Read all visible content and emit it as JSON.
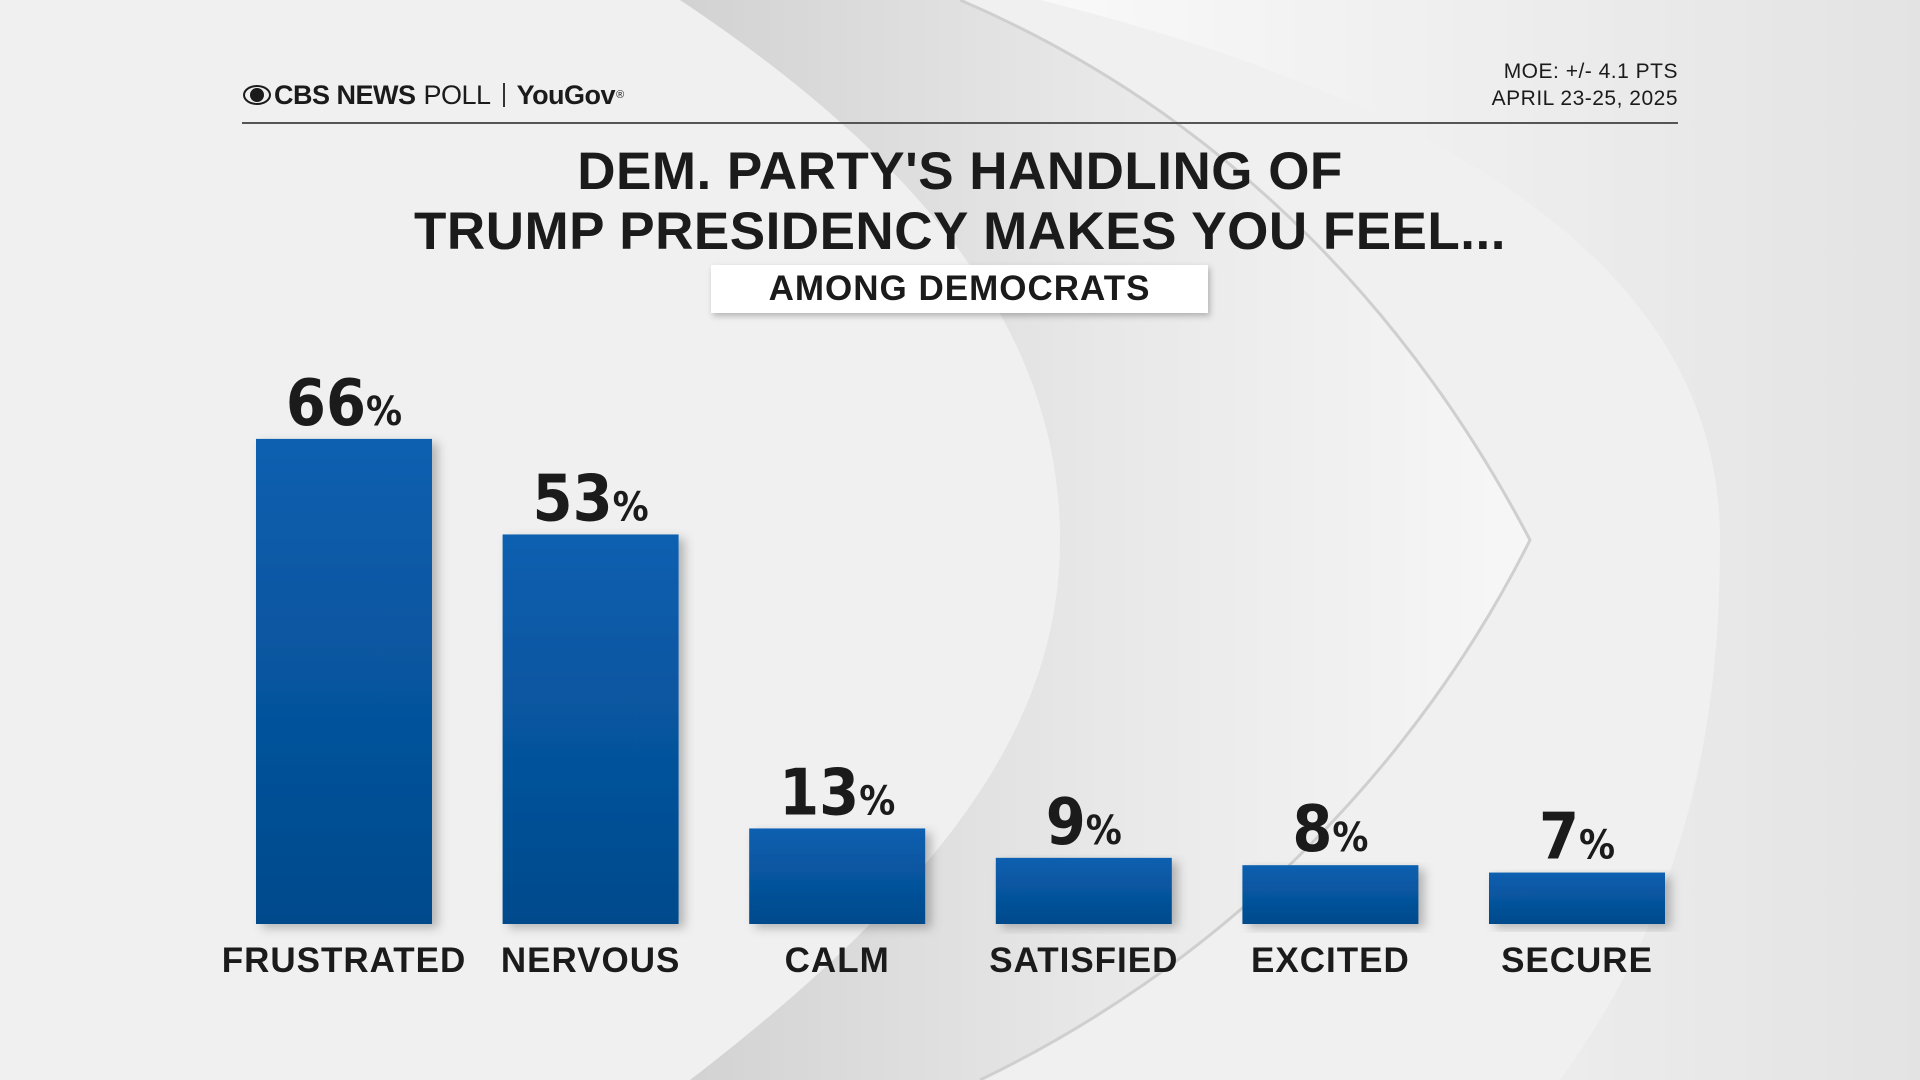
{
  "brand": {
    "cbs": "CBS NEWS",
    "poll": "POLL",
    "partner": "YouGov",
    "partner_mark": "®"
  },
  "meta": {
    "moe": "MOE: +/- 4.1 PTS",
    "dates": "APRIL 23-25, 2025"
  },
  "colors": {
    "bar": "#0a5aa8",
    "bar_dark": "#034a8c",
    "text": "#1b1b1b"
  },
  "chart_data": {
    "type": "bar",
    "title": "DEM. PARTY'S HANDLING OF TRUMP PRESIDENCY MAKES YOU FEEL...",
    "title_lines": [
      "DEM. PARTY'S HANDLING OF",
      "TRUMP PRESIDENCY MAKES YOU FEEL..."
    ],
    "subtitle": "AMONG DEMOCRATS",
    "categories": [
      "FRUSTRATED",
      "NERVOUS",
      "CALM",
      "SATISFIED",
      "EXCITED",
      "SECURE"
    ],
    "values": [
      66,
      53,
      13,
      9,
      8,
      7
    ],
    "value_suffix": "%",
    "xlabel": "",
    "ylabel": "",
    "ylim": [
      0,
      100
    ],
    "grid": false,
    "legend": "none"
  }
}
